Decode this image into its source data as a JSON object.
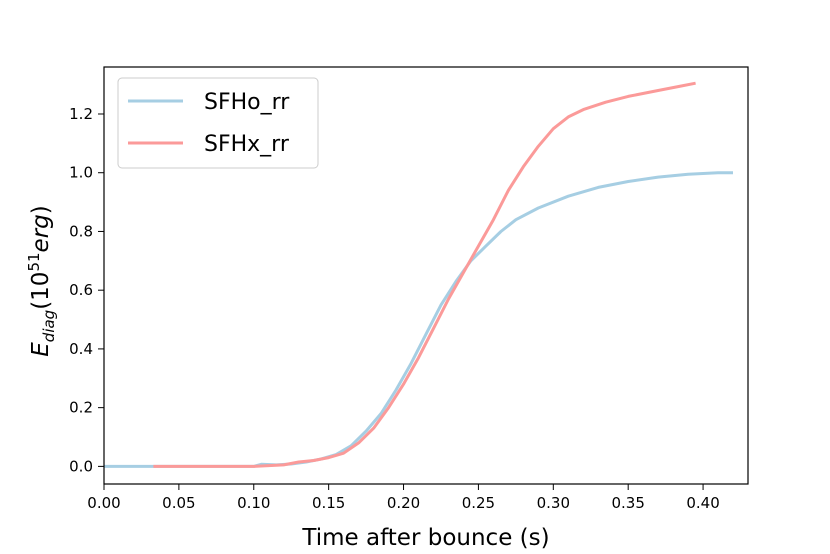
{
  "chart_data": {
    "type": "line",
    "xlabel": "Time after bounce (s)",
    "ylabel": {
      "base": "E",
      "subscript": "diag",
      "open": "(10",
      "superscript": "51",
      "unit": "erg",
      "close": ")"
    },
    "xlim": [
      0.0,
      0.43
    ],
    "ylim": [
      -0.06,
      1.36
    ],
    "xticks": [
      "0.00",
      "0.05",
      "0.10",
      "0.15",
      "0.20",
      "0.25",
      "0.30",
      "0.35",
      "0.40"
    ],
    "yticks": [
      "0.0",
      "0.2",
      "0.4",
      "0.6",
      "0.8",
      "1.0",
      "1.2"
    ],
    "grid": false,
    "legend_position": "upper-left",
    "series": [
      {
        "name": "SFHo_rr",
        "color": "#a6cee3",
        "points": [
          [
            0.0,
            0.0
          ],
          [
            0.05,
            0.0
          ],
          [
            0.1,
            0.0
          ],
          [
            0.105,
            0.007
          ],
          [
            0.115,
            0.005
          ],
          [
            0.125,
            0.008
          ],
          [
            0.135,
            0.015
          ],
          [
            0.145,
            0.025
          ],
          [
            0.155,
            0.04
          ],
          [
            0.165,
            0.07
          ],
          [
            0.175,
            0.12
          ],
          [
            0.185,
            0.18
          ],
          [
            0.195,
            0.26
          ],
          [
            0.205,
            0.35
          ],
          [
            0.215,
            0.45
          ],
          [
            0.225,
            0.55
          ],
          [
            0.235,
            0.63
          ],
          [
            0.245,
            0.7
          ],
          [
            0.255,
            0.75
          ],
          [
            0.265,
            0.8
          ],
          [
            0.275,
            0.84
          ],
          [
            0.29,
            0.88
          ],
          [
            0.31,
            0.92
          ],
          [
            0.33,
            0.95
          ],
          [
            0.35,
            0.97
          ],
          [
            0.37,
            0.985
          ],
          [
            0.39,
            0.995
          ],
          [
            0.41,
            1.0
          ],
          [
            0.42,
            1.0
          ]
        ]
      },
      {
        "name": "SFHx_rr",
        "color": "#fb9a99",
        "points": [
          [
            0.033,
            0.0
          ],
          [
            0.05,
            0.0
          ],
          [
            0.1,
            0.0
          ],
          [
            0.12,
            0.005
          ],
          [
            0.13,
            0.015
          ],
          [
            0.14,
            0.02
          ],
          [
            0.15,
            0.03
          ],
          [
            0.16,
            0.045
          ],
          [
            0.17,
            0.08
          ],
          [
            0.18,
            0.13
          ],
          [
            0.19,
            0.2
          ],
          [
            0.2,
            0.28
          ],
          [
            0.21,
            0.37
          ],
          [
            0.22,
            0.47
          ],
          [
            0.23,
            0.57
          ],
          [
            0.24,
            0.66
          ],
          [
            0.25,
            0.75
          ],
          [
            0.26,
            0.84
          ],
          [
            0.27,
            0.94
          ],
          [
            0.28,
            1.02
          ],
          [
            0.29,
            1.09
          ],
          [
            0.3,
            1.15
          ],
          [
            0.31,
            1.19
          ],
          [
            0.32,
            1.215
          ],
          [
            0.335,
            1.24
          ],
          [
            0.35,
            1.26
          ],
          [
            0.37,
            1.28
          ],
          [
            0.385,
            1.295
          ],
          [
            0.395,
            1.305
          ]
        ]
      }
    ]
  }
}
